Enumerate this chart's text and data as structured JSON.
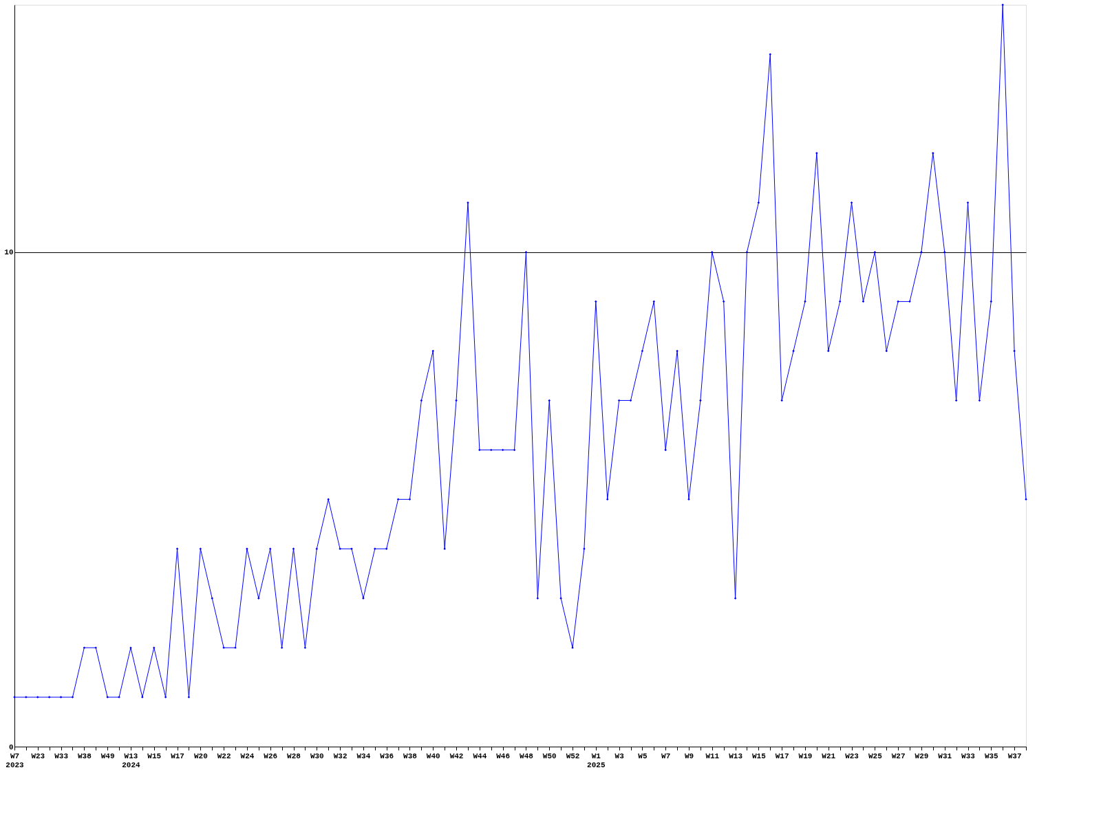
{
  "chart_data": {
    "type": "line",
    "categories": [
      "W7\n2023",
      null,
      "W23",
      null,
      "W33",
      null,
      "W38",
      null,
      "W49",
      null,
      "W13\n2024",
      null,
      "W15",
      null,
      "W17",
      null,
      "W20",
      null,
      "W22",
      null,
      "W24",
      null,
      "W26",
      null,
      "W28",
      null,
      "W30",
      null,
      "W32",
      null,
      "W34",
      null,
      "W36",
      null,
      "W38",
      null,
      "W40",
      null,
      "W42",
      null,
      "W44",
      null,
      "W46",
      null,
      "W48",
      null,
      "W50",
      null,
      "W52",
      null,
      "W1\n2025",
      null,
      "W3",
      null,
      "W5",
      null,
      "W7",
      null,
      "W9",
      null,
      "W11",
      null,
      "W13",
      null,
      "W15",
      null,
      "W17",
      null,
      "W19",
      null,
      "W21",
      null,
      "W23",
      null,
      "W25",
      null,
      "W27",
      null,
      "W29",
      null,
      "W31",
      null,
      "W33",
      null,
      "W35",
      null,
      "W37",
      null
    ],
    "series": [
      {
        "color": "#0000ff",
        "values": [
          1,
          1,
          1,
          1,
          1,
          1,
          2,
          2,
          1,
          1,
          2,
          1,
          2,
          1,
          4,
          1,
          4,
          3,
          2,
          2,
          4,
          3,
          4,
          2,
          4,
          2,
          4,
          5,
          4,
          4,
          3,
          4,
          4,
          5,
          5,
          7,
          8,
          4,
          7,
          11,
          6,
          6,
          6,
          6,
          10,
          3,
          7,
          3,
          2,
          4,
          9,
          5,
          7,
          7,
          8,
          9,
          6,
          8,
          5,
          7,
          10,
          9,
          3,
          10,
          11,
          14,
          7,
          8,
          9,
          12,
          8,
          9,
          11,
          9,
          10,
          8,
          9,
          9,
          10,
          12,
          10,
          7,
          11,
          7,
          9,
          15,
          8,
          5
        ]
      }
    ],
    "ylim": [
      0,
      15
    ],
    "yticks": [
      0,
      10
    ],
    "grid": "y",
    "marker": "diamond",
    "line_style": "solid"
  }
}
